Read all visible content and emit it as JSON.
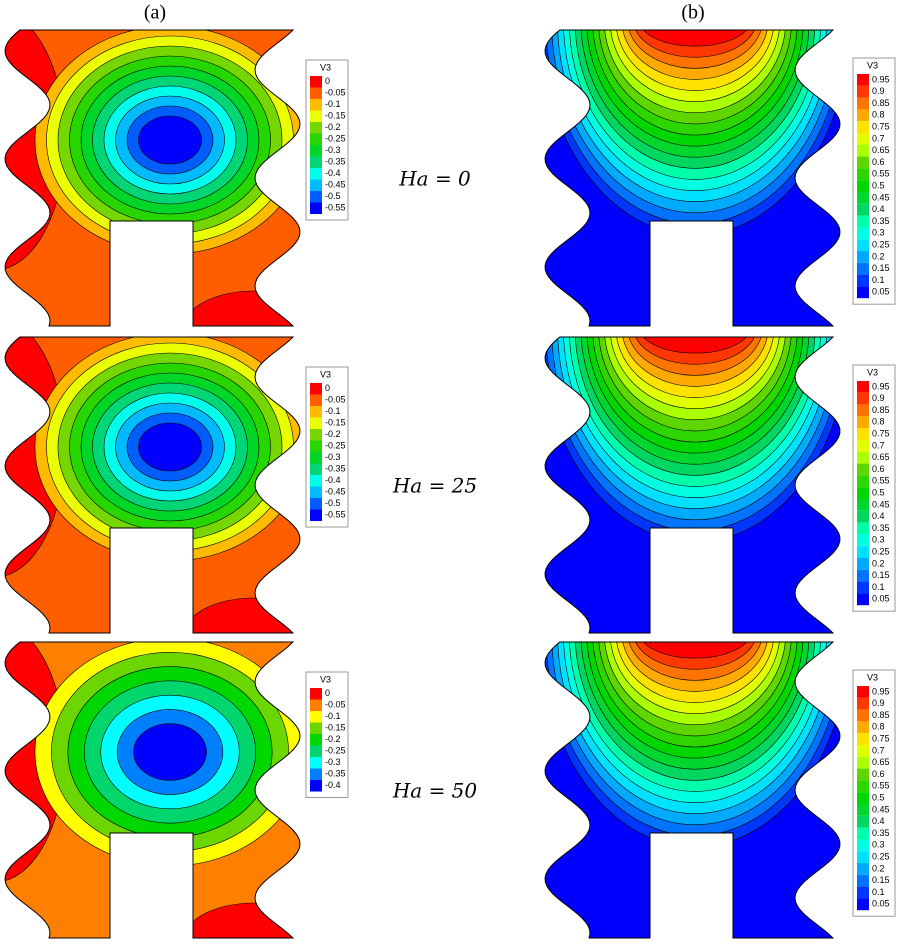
{
  "panel_labels": [
    "(a)",
    "(b)"
  ],
  "rows": [
    {
      "label": "Ha = 0",
      "legend_left": {
        "title": "V3",
        "levels": [
          0,
          -0.05,
          -0.1,
          -0.15,
          -0.2,
          -0.25,
          -0.3,
          -0.35,
          -0.4,
          -0.45,
          -0.5,
          -0.55
        ]
      },
      "legend_right": {
        "title": "V3",
        "levels": [
          0.95,
          0.9,
          0.85,
          0.8,
          0.75,
          0.7,
          0.65,
          0.6,
          0.55,
          0.5,
          0.45,
          0.4,
          0.35,
          0.3,
          0.25,
          0.2,
          0.15,
          0.1,
          0.05
        ]
      }
    },
    {
      "label": "Ha = 25",
      "legend_left": {
        "title": "V3",
        "levels": [
          0,
          -0.05,
          -0.1,
          -0.15,
          -0.2,
          -0.25,
          -0.3,
          -0.35,
          -0.4,
          -0.45,
          -0.5,
          -0.55
        ]
      },
      "legend_right": {
        "title": "V3",
        "levels": [
          0.95,
          0.9,
          0.85,
          0.8,
          0.75,
          0.7,
          0.65,
          0.6,
          0.55,
          0.5,
          0.45,
          0.4,
          0.35,
          0.3,
          0.25,
          0.2,
          0.15,
          0.1,
          0.05
        ]
      }
    },
    {
      "label": "Ha = 50",
      "legend_left": {
        "title": "V3",
        "levels": [
          0,
          -0.05,
          -0.1,
          -0.15,
          -0.2,
          -0.25,
          -0.3,
          -0.35,
          -0.4
        ]
      },
      "legend_right": {
        "title": "V3",
        "levels": [
          0.95,
          0.9,
          0.85,
          0.8,
          0.75,
          0.7,
          0.65,
          0.6,
          0.55,
          0.5,
          0.45,
          0.4,
          0.35,
          0.3,
          0.25,
          0.2,
          0.15,
          0.1,
          0.05
        ]
      }
    }
  ]
}
